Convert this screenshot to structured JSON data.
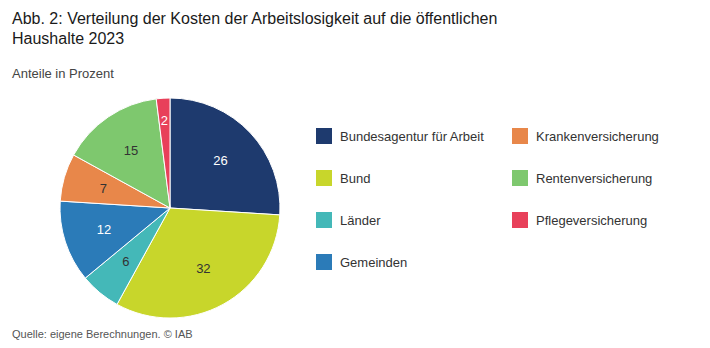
{
  "chart_data": {
    "type": "pie",
    "title": "Abb. 2: Verteilung der Kosten der Arbeitslosigkeit auf die öffentlichen\nHaushalte 2023",
    "subtitle": "Anteile in Prozent",
    "footer": "Quelle: eigene Berechnungen.  © IAB",
    "categories": [
      "Bundesagentur für Arbeit",
      "Bund",
      "Länder",
      "Gemeinden",
      "Krankenversicherung",
      "Rentenversicherung",
      "Pflegeversicherung"
    ],
    "values": [
      26,
      32,
      6,
      12,
      7,
      15,
      2
    ],
    "colors": [
      "#1e3a6e",
      "#c8d62b",
      "#44b8b8",
      "#2b7bb8",
      "#e8874a",
      "#7ec86e",
      "#e8405a"
    ],
    "data_labels": true,
    "legend": "right"
  }
}
